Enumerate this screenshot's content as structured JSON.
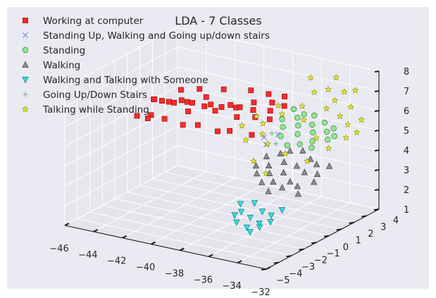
{
  "chart_data": {
    "type": "scatter",
    "projection": "3d",
    "title": "LDA - 7 Classes",
    "xlabel": "",
    "ylabel": "",
    "zlabel": "",
    "xlim": [
      -46,
      -32
    ],
    "ylim": [
      -5,
      4
    ],
    "zlim": [
      1,
      8
    ],
    "x_ticks": [
      "−46",
      "−44",
      "−42",
      "−40",
      "−38",
      "−36",
      "−34",
      "−32"
    ],
    "y_ticks": [
      "−5",
      "−4",
      "−3",
      "−2",
      "−1",
      "0",
      "1",
      "2",
      "3",
      "4"
    ],
    "z_ticks": [
      "1",
      "2",
      "3",
      "4",
      "5",
      "6",
      "7",
      "8"
    ],
    "grid": true,
    "legend_position": "top-left",
    "series": [
      {
        "name": "Working at computer",
        "marker": "square",
        "color": "#ff2a2a",
        "points": [
          [
            -46.0,
            2.1,
            5.0
          ],
          [
            -45.6,
            1.7,
            5.2
          ],
          [
            -45.2,
            2.4,
            4.9
          ],
          [
            -44.9,
            1.5,
            5.3
          ],
          [
            -44.5,
            2.0,
            5.1
          ],
          [
            -44.1,
            2.6,
            5.0
          ],
          [
            -43.8,
            1.8,
            5.4
          ],
          [
            -43.4,
            2.2,
            5.2
          ],
          [
            -43.0,
            1.4,
            5.1
          ],
          [
            -42.7,
            2.5,
            5.5
          ],
          [
            -42.3,
            1.9,
            5.3
          ],
          [
            -41.9,
            2.3,
            5.0
          ],
          [
            -41.6,
            1.6,
            5.6
          ],
          [
            -41.2,
            2.0,
            5.4
          ],
          [
            -40.8,
            2.7,
            5.2
          ],
          [
            -40.4,
            1.8,
            5.7
          ],
          [
            -40.1,
            2.2,
            5.5
          ],
          [
            -39.7,
            1.5,
            5.3
          ],
          [
            -39.3,
            2.4,
            5.8
          ],
          [
            -39.0,
            2.0,
            5.6
          ],
          [
            -38.6,
            1.7,
            5.4
          ],
          [
            -38.2,
            2.6,
            5.9
          ],
          [
            -37.9,
            2.1,
            5.7
          ],
          [
            -37.5,
            1.6,
            5.5
          ],
          [
            -37.1,
            2.3,
            6.0
          ],
          [
            -45.4,
            1.2,
            4.6
          ],
          [
            -44.2,
            0.9,
            4.7
          ],
          [
            -43.1,
            1.1,
            4.5
          ],
          [
            -41.8,
            0.8,
            4.8
          ],
          [
            -40.6,
            1.0,
            4.6
          ],
          [
            -39.5,
            0.7,
            4.9
          ],
          [
            -38.4,
            1.2,
            4.7
          ],
          [
            -43.6,
            3.0,
            5.6
          ],
          [
            -42.0,
            3.1,
            5.8
          ],
          [
            -40.2,
            3.2,
            6.0
          ],
          [
            -38.8,
            3.0,
            6.1
          ],
          [
            -37.6,
            2.9,
            6.2
          ],
          [
            -44.8,
            2.9,
            5.4
          ],
          [
            -46.2,
            1.0,
            4.5
          ],
          [
            -45.8,
            1.4,
            4.3
          ]
        ]
      },
      {
        "name": "Standing Up, Walking and Going up/down stairs",
        "marker": "x",
        "color": "#8a8ad8",
        "points": [
          [
            -37.2,
            0.8,
            4.9
          ],
          [
            -36.8,
            0.5,
            4.7
          ],
          [
            -36.4,
            1.0,
            5.1
          ]
        ]
      },
      {
        "name": "Standing",
        "marker": "circle",
        "color": "#8ee88e",
        "points": [
          [
            -36.9,
            1.9,
            5.5
          ],
          [
            -36.5,
            1.5,
            5.3
          ],
          [
            -36.1,
            2.2,
            5.6
          ],
          [
            -35.7,
            1.8,
            5.4
          ],
          [
            -35.3,
            1.3,
            5.2
          ],
          [
            -34.9,
            2.0,
            5.5
          ],
          [
            -34.5,
            1.6,
            5.3
          ],
          [
            -34.1,
            1.1,
            5.1
          ],
          [
            -33.7,
            1.8,
            5.4
          ],
          [
            -33.3,
            1.4,
            5.2
          ],
          [
            -35.9,
            2.5,
            5.7
          ],
          [
            -35.1,
            2.4,
            5.8
          ],
          [
            -34.3,
            2.3,
            5.6
          ],
          [
            -33.5,
            2.1,
            5.5
          ],
          [
            -36.3,
            1.1,
            5.0
          ],
          [
            -34.8,
            0.9,
            4.9
          ],
          [
            -33.9,
            0.8,
            4.9
          ],
          [
            -36.7,
            2.6,
            5.8
          ],
          [
            -33.1,
            1.7,
            5.3
          ],
          [
            -35.5,
            0.7,
            4.8
          ]
        ]
      },
      {
        "name": "Walking",
        "marker": "triangle-up",
        "color": "#8c8c8c",
        "points": [
          [
            -36.0,
            -0.2,
            4.0
          ],
          [
            -35.6,
            -0.6,
            3.8
          ],
          [
            -35.2,
            0.1,
            4.2
          ],
          [
            -34.8,
            -0.4,
            3.9
          ],
          [
            -34.4,
            0.2,
            4.1
          ],
          [
            -34.0,
            -0.8,
            3.7
          ],
          [
            -33.6,
            -0.1,
            4.0
          ],
          [
            -33.2,
            0.4,
            4.3
          ],
          [
            -35.8,
            0.5,
            4.4
          ],
          [
            -35.0,
            -1.0,
            3.6
          ],
          [
            -34.2,
            -1.2,
            3.5
          ],
          [
            -33.4,
            -0.9,
            3.6
          ],
          [
            -32.8,
            0.0,
            4.0
          ],
          [
            -36.4,
            -0.7,
            3.7
          ],
          [
            -35.4,
            0.8,
            4.5
          ],
          [
            -34.6,
            0.9,
            4.6
          ],
          [
            -33.8,
            0.6,
            4.4
          ],
          [
            -32.6,
            -0.5,
            3.8
          ],
          [
            -36.6,
            0.3,
            4.2
          ],
          [
            -33.0,
            -1.3,
            3.4
          ],
          [
            -34.9,
            -1.5,
            3.3
          ],
          [
            -35.7,
            -1.1,
            3.5
          ],
          [
            -32.4,
            0.5,
            4.3
          ],
          [
            -36.8,
            -0.3,
            3.9
          ]
        ]
      },
      {
        "name": "Walking and Talking with Someone",
        "marker": "triangle-down",
        "color": "#2be0dc",
        "points": [
          [
            -36.4,
            -2.0,
            2.6
          ],
          [
            -36.0,
            -2.4,
            2.4
          ],
          [
            -35.6,
            -1.8,
            2.7
          ],
          [
            -35.2,
            -2.6,
            2.3
          ],
          [
            -34.8,
            -2.1,
            2.5
          ],
          [
            -34.4,
            -2.8,
            2.2
          ],
          [
            -34.0,
            -2.3,
            2.5
          ],
          [
            -33.6,
            -1.9,
            2.7
          ],
          [
            -35.8,
            -3.0,
            2.1
          ],
          [
            -35.0,
            -3.1,
            2.0
          ],
          [
            -34.2,
            -3.0,
            2.1
          ],
          [
            -33.8,
            -2.6,
            2.3
          ],
          [
            -36.2,
            -2.7,
            2.3
          ],
          [
            -34.6,
            -3.3,
            1.9
          ]
        ]
      },
      {
        "name": "Going Up/Down Stairs",
        "marker": "plus",
        "color": "#7ab87a",
        "points": [
          [
            -37.0,
            1.2,
            5.0
          ],
          [
            -36.2,
            0.6,
            4.8
          ]
        ]
      },
      {
        "name": "Talking while Standing",
        "marker": "star",
        "color": "#e8e820",
        "points": [
          [
            -37.8,
            1.4,
            5.3
          ],
          [
            -37.4,
            0.9,
            5.0
          ],
          [
            -37.0,
            2.0,
            5.7
          ],
          [
            -36.6,
            0.4,
            4.8
          ],
          [
            -36.2,
            2.7,
            6.0
          ],
          [
            -35.8,
            3.2,
            6.6
          ],
          [
            -35.4,
            1.9,
            5.7
          ],
          [
            -35.0,
            3.4,
            6.8
          ],
          [
            -34.6,
            2.8,
            6.1
          ],
          [
            -34.2,
            3.0,
            6.5
          ],
          [
            -33.8,
            3.3,
            6.9
          ],
          [
            -33.4,
            2.5,
            6.0
          ],
          [
            -33.0,
            2.9,
            6.4
          ],
          [
            -32.6,
            2.2,
            5.8
          ],
          [
            -32.2,
            1.6,
            5.4
          ],
          [
            -38.2,
            0.5,
            4.7
          ],
          [
            -38.6,
            1.8,
            5.4
          ],
          [
            -39.0,
            1.1,
            5.1
          ],
          [
            -36.8,
            -0.5,
            4.2
          ],
          [
            -35.6,
            -0.9,
            3.9
          ],
          [
            -34.0,
            1.3,
            5.2
          ],
          [
            -32.8,
            0.9,
            5.0
          ],
          [
            -32.0,
            2.6,
            6.0
          ],
          [
            -36.4,
            3.6,
            7.1
          ],
          [
            -34.8,
            3.8,
            7.3
          ],
          [
            -33.2,
            3.5,
            7.0
          ],
          [
            -31.8,
            2.0,
            5.6
          ],
          [
            -37.6,
            2.4,
            5.9
          ],
          [
            -35.2,
            0.2,
            4.6
          ],
          [
            -33.6,
            0.1,
            4.5
          ]
        ]
      }
    ]
  }
}
